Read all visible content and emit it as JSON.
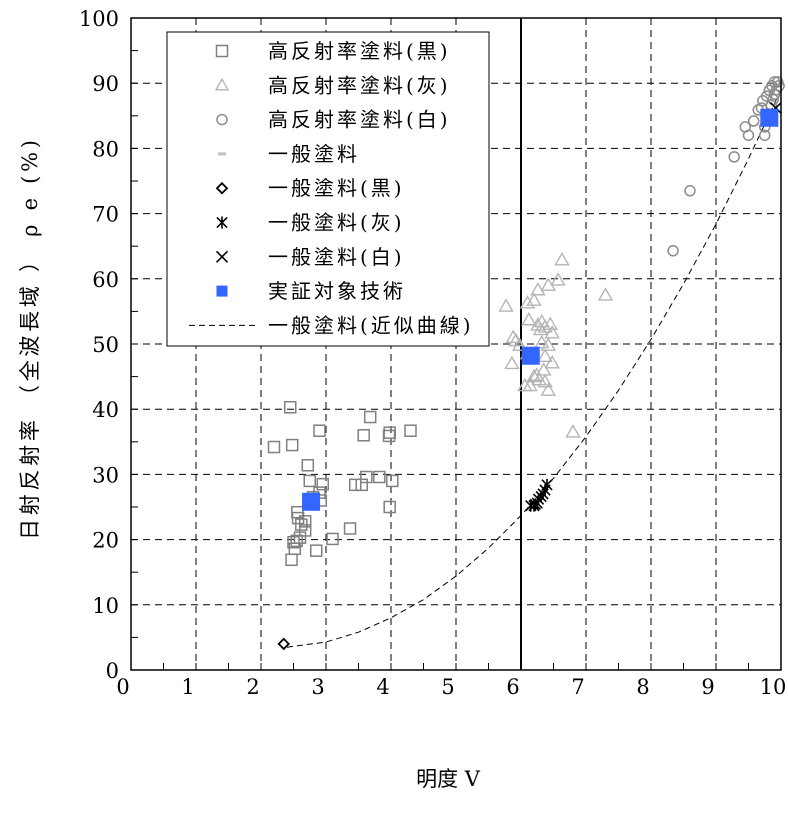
{
  "chart_data": {
    "type": "scatter",
    "xlabel": "明度 V",
    "ylabel": "日射反射率 （全波長域 ） ρ e (%)",
    "xlim": [
      0,
      10
    ],
    "ylim": [
      0,
      100
    ],
    "x_ticks": [
      "0",
      "1",
      "2",
      "3",
      "4",
      "5",
      "6",
      "7",
      "8",
      "9",
      "10"
    ],
    "y_ticks": [
      "0",
      "10",
      "20",
      "30",
      "40",
      "50",
      "60",
      "70",
      "80",
      "90",
      "100"
    ],
    "grid": true,
    "legend_position": "top-left",
    "reference_lines": [
      {
        "x": 6
      }
    ],
    "series": [
      {
        "name": "高反射率塗料(黒)",
        "marker": "open-square",
        "color": "#808080",
        "points": [
          [
            2.2,
            34.2
          ],
          [
            2.45,
            40.3
          ],
          [
            2.48,
            34.5
          ],
          [
            2.9,
            36.7
          ],
          [
            2.72,
            31.4
          ],
          [
            2.75,
            29.0
          ],
          [
            2.95,
            28.5
          ],
          [
            2.9,
            27.2
          ],
          [
            2.8,
            26.5
          ],
          [
            2.92,
            26.0
          ],
          [
            2.56,
            24.2
          ],
          [
            2.57,
            23.3
          ],
          [
            2.62,
            22.3
          ],
          [
            2.68,
            22.8
          ],
          [
            2.68,
            21.4
          ],
          [
            2.6,
            20.3
          ],
          [
            2.5,
            19.6
          ],
          [
            2.55,
            19.8
          ],
          [
            2.52,
            18.6
          ],
          [
            2.47,
            16.9
          ],
          [
            2.85,
            18.3
          ],
          [
            3.1,
            20.1
          ],
          [
            3.37,
            21.7
          ],
          [
            3.45,
            28.4
          ],
          [
            3.55,
            28.4
          ],
          [
            3.58,
            36.0
          ],
          [
            3.68,
            38.8
          ],
          [
            3.62,
            29.6
          ],
          [
            3.82,
            29.6
          ],
          [
            3.97,
            35.9
          ],
          [
            3.98,
            36.4
          ],
          [
            4.02,
            29.0
          ],
          [
            3.98,
            25.0
          ],
          [
            4.3,
            36.7
          ]
        ]
      },
      {
        "name": "高反射率塗料(灰)",
        "marker": "open-triangle",
        "color": "#b4b4b4",
        "points": [
          [
            5.77,
            55.8
          ],
          [
            5.88,
            51.0
          ],
          [
            5.92,
            50.5
          ],
          [
            5.86,
            47.0
          ],
          [
            5.98,
            49.8
          ],
          [
            6.1,
            56.3
          ],
          [
            6.12,
            53.7
          ],
          [
            6.06,
            43.6
          ],
          [
            6.14,
            43.6
          ],
          [
            6.1,
            48.5
          ],
          [
            6.2,
            56.7
          ],
          [
            6.26,
            58.3
          ],
          [
            6.26,
            52.9
          ],
          [
            6.3,
            52.2
          ],
          [
            6.2,
            45.0
          ],
          [
            6.28,
            44.5
          ],
          [
            6.24,
            45.2
          ],
          [
            6.32,
            53.4
          ],
          [
            6.37,
            52.6
          ],
          [
            6.37,
            44.2
          ],
          [
            6.37,
            48.1
          ],
          [
            6.35,
            46.0
          ],
          [
            6.32,
            50.2
          ],
          [
            6.42,
            59.0
          ],
          [
            6.42,
            49.8
          ],
          [
            6.42,
            42.9
          ],
          [
            6.45,
            53.0
          ],
          [
            6.48,
            47.1
          ],
          [
            6.48,
            51.7
          ],
          [
            6.57,
            59.8
          ],
          [
            6.63,
            62.9
          ],
          [
            6.8,
            36.5
          ],
          [
            7.3,
            57.5
          ]
        ]
      },
      {
        "name": "高反射率塗料(白)",
        "marker": "open-circle",
        "color": "#8c8c8c",
        "points": [
          [
            8.34,
            64.3
          ],
          [
            8.6,
            73.5
          ],
          [
            9.28,
            78.7
          ],
          [
            9.45,
            83.3
          ],
          [
            9.5,
            82.0
          ],
          [
            9.58,
            84.2
          ],
          [
            9.65,
            85.9
          ],
          [
            9.7,
            86.2
          ],
          [
            9.72,
            87.3
          ],
          [
            9.75,
            82.0
          ],
          [
            9.75,
            83.3
          ],
          [
            9.78,
            88.0
          ],
          [
            9.8,
            85.3
          ],
          [
            9.82,
            88.9
          ],
          [
            9.85,
            86.6
          ],
          [
            9.86,
            89.6
          ],
          [
            9.88,
            87.5
          ],
          [
            9.9,
            88.3
          ],
          [
            9.9,
            90.2
          ],
          [
            9.93,
            89.0
          ],
          [
            9.95,
            90.2
          ],
          [
            9.97,
            89.6
          ]
        ]
      },
      {
        "name": "一般塗料",
        "marker": "dash",
        "color": "#c0c0c0",
        "points": []
      },
      {
        "name": "一般塗料(黒)",
        "marker": "open-diamond",
        "color": "#000000",
        "points": [
          [
            2.35,
            4.0
          ]
        ]
      },
      {
        "name": "一般塗料(灰)",
        "marker": "asterisk",
        "color": "#000000",
        "points": [
          [
            6.15,
            25.2
          ],
          [
            6.2,
            25.2
          ],
          [
            6.22,
            25.4
          ],
          [
            6.25,
            25.6
          ],
          [
            6.27,
            26.2
          ],
          [
            6.31,
            26.6
          ],
          [
            6.34,
            27.0
          ],
          [
            6.37,
            27.6
          ],
          [
            6.4,
            28.4
          ]
        ]
      },
      {
        "name": "一般塗料(白)",
        "marker": "cross",
        "color": "#000000",
        "points": [
          [
            9.92,
            86.2
          ]
        ]
      },
      {
        "name": "実証対象技術",
        "marker": "filled-square",
        "color": "#3366ff",
        "points": [
          [
            2.77,
            25.8
          ],
          [
            6.15,
            48.2
          ],
          [
            9.82,
            84.7
          ]
        ]
      },
      {
        "name": "一般塗料(近似曲線)",
        "marker": "dashed-line",
        "color": "#000000",
        "points": [
          [
            2.4,
            3.5
          ],
          [
            3,
            4.3
          ],
          [
            3.5,
            5.8
          ],
          [
            4,
            8.0
          ],
          [
            4.5,
            10.8
          ],
          [
            5,
            14.4
          ],
          [
            5.5,
            18.7
          ],
          [
            6,
            23.7
          ],
          [
            6.5,
            29.4
          ],
          [
            7,
            35.8
          ],
          [
            7.5,
            42.9
          ],
          [
            8,
            50.7
          ],
          [
            8.5,
            59.2
          ],
          [
            9,
            68.4
          ],
          [
            9.5,
            78.4
          ],
          [
            10,
            89.0
          ]
        ]
      }
    ]
  }
}
